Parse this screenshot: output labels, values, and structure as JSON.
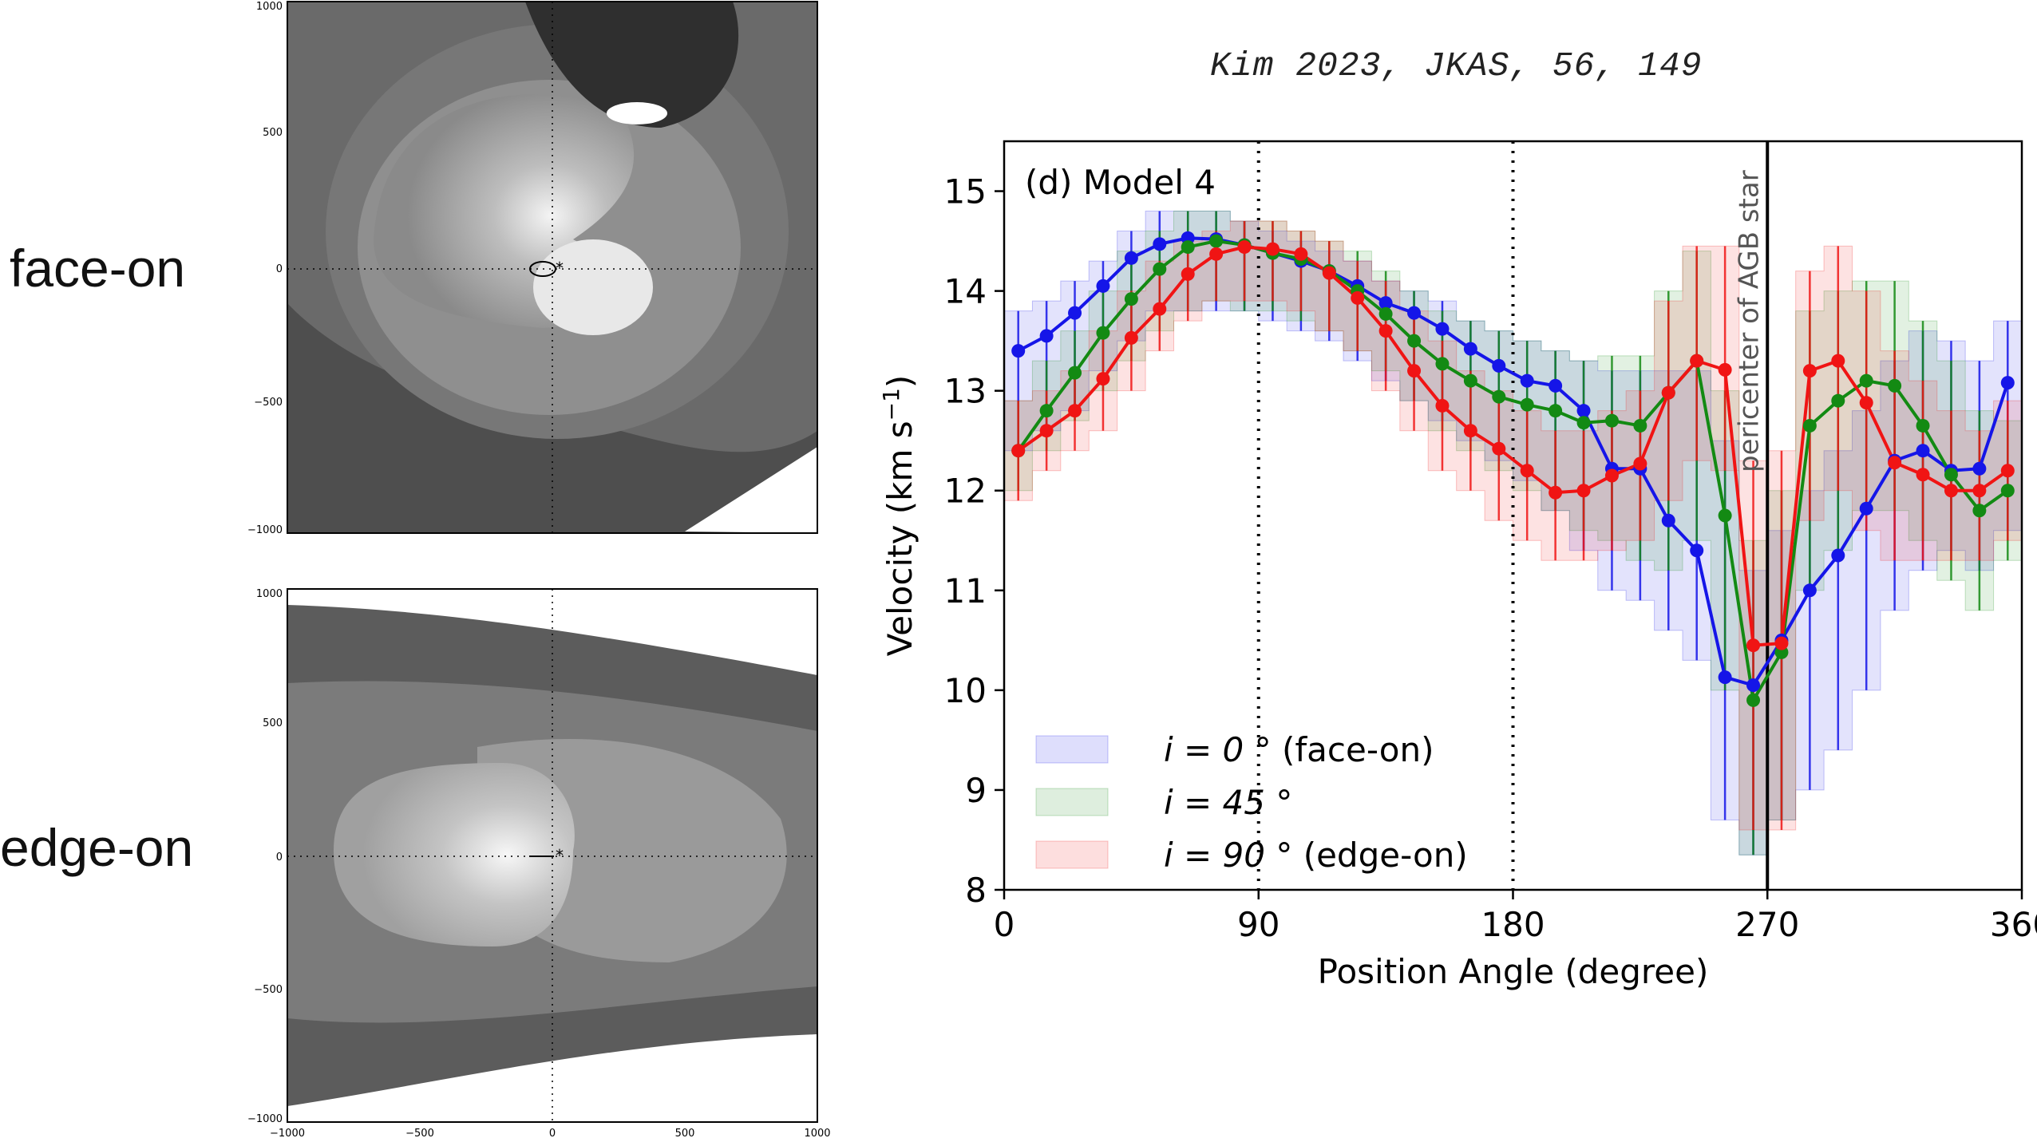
{
  "labels": {
    "face": "face-on",
    "edge": "edge-on"
  },
  "citation": "Kim 2023, JKAS, 56, 149",
  "face_panel": {
    "y_ticks": [
      "1000",
      "500",
      "0",
      "−500",
      "−1000"
    ]
  },
  "edge_panel": {
    "y_ticks": [
      "1000",
      "500",
      "0",
      "−500",
      "−1000"
    ],
    "x_ticks": [
      "−1000",
      "−500",
      "0",
      "500",
      "1000"
    ]
  },
  "colors": {
    "blue": "#1515e8",
    "green": "#138a13",
    "red": "#f01414"
  },
  "chart_data": {
    "type": "line",
    "panel_label": "(d) Model 4",
    "xlabel": "Position Angle (degree)",
    "ylabel_main": "Velocity (km s",
    "ylabel_sup": "−1",
    "ylabel_end": ")",
    "xlim": [
      0,
      360
    ],
    "ylim": [
      8,
      15.5
    ],
    "x_ticks": [
      0,
      90,
      180,
      270,
      360
    ],
    "y_ticks": [
      8,
      9,
      10,
      11,
      12,
      13,
      14,
      15
    ],
    "vlines_dotted": [
      90,
      180
    ],
    "vline_solid": 270,
    "vline_label": "pericenter of AGB star",
    "x": [
      5,
      15,
      25,
      35,
      45,
      55,
      65,
      75,
      85,
      95,
      105,
      115,
      125,
      135,
      145,
      155,
      165,
      175,
      185,
      195,
      205,
      215,
      225,
      235,
      245,
      255,
      265,
      275,
      285,
      295,
      305,
      315,
      325,
      335,
      345,
      355
    ],
    "series": [
      {
        "name": "face-on",
        "legend_i": "i = 0",
        "legend_desc": "(face-on)",
        "color": "#1515e8",
        "values": [
          13.4,
          13.55,
          13.78,
          14.05,
          14.33,
          14.47,
          14.53,
          14.52,
          14.46,
          14.38,
          14.3,
          14.2,
          14.05,
          13.88,
          13.78,
          13.62,
          13.42,
          13.25,
          13.1,
          13.05,
          12.8,
          12.22,
          12.22,
          11.7,
          11.4,
          10.13,
          10.05,
          10.5,
          11.0,
          11.35,
          11.82,
          12.3,
          12.4,
          12.2,
          12.22,
          13.08
        ],
        "lower": [
          12.4,
          12.6,
          12.8,
          13.2,
          13.5,
          13.8,
          13.8,
          13.8,
          13.8,
          13.7,
          13.6,
          13.5,
          13.3,
          13.1,
          12.9,
          12.7,
          12.5,
          12.3,
          12.1,
          11.8,
          11.4,
          11.0,
          10.9,
          10.6,
          10.3,
          8.7,
          8.35,
          8.7,
          9.0,
          9.4,
          10.0,
          10.8,
          11.2,
          11.4,
          11.2,
          11.6
        ],
        "upper": [
          13.8,
          13.9,
          14.1,
          14.3,
          14.6,
          14.8,
          14.8,
          14.8,
          14.7,
          14.6,
          14.5,
          14.4,
          14.3,
          14.1,
          14.0,
          13.9,
          13.7,
          13.6,
          13.5,
          13.4,
          13.3,
          13.2,
          13.2,
          13.2,
          13.2,
          12.5,
          11.2,
          11.6,
          12.0,
          12.4,
          12.8,
          13.3,
          13.6,
          13.5,
          13.3,
          13.7
        ]
      },
      {
        "name": "i45",
        "legend_i": "i = 45",
        "legend_desc": "",
        "color": "#138a13",
        "values": [
          12.4,
          12.8,
          13.18,
          13.58,
          13.92,
          14.22,
          14.44,
          14.5,
          14.46,
          14.38,
          14.32,
          14.2,
          14.0,
          13.77,
          13.5,
          13.27,
          13.1,
          12.94,
          12.86,
          12.8,
          12.68,
          12.7,
          12.65,
          12.98,
          13.3,
          11.75,
          9.9,
          10.38,
          12.65,
          12.9,
          13.1,
          13.05,
          12.65,
          12.16,
          11.8,
          12.0
        ],
        "lower": [
          12.0,
          12.4,
          12.7,
          13.0,
          13.3,
          13.6,
          13.8,
          13.9,
          13.8,
          13.8,
          13.7,
          13.6,
          13.4,
          13.2,
          12.9,
          12.6,
          12.4,
          12.2,
          12.0,
          11.8,
          11.6,
          11.5,
          11.3,
          11.2,
          11.5,
          10.0,
          8.35,
          8.7,
          11.0,
          11.4,
          11.8,
          11.8,
          11.5,
          11.1,
          10.8,
          11.3
        ],
        "upper": [
          12.9,
          13.3,
          13.6,
          14.0,
          14.4,
          14.6,
          14.8,
          14.8,
          14.7,
          14.7,
          14.6,
          14.5,
          14.4,
          14.2,
          14.0,
          13.8,
          13.7,
          13.6,
          13.5,
          13.4,
          13.3,
          13.35,
          13.35,
          14.0,
          14.4,
          13.0,
          11.5,
          12.0,
          13.8,
          14.0,
          14.1,
          14.1,
          13.7,
          13.3,
          12.8,
          12.7
        ]
      },
      {
        "name": "edge-on",
        "legend_i": "i = 90",
        "legend_desc": "(edge-on)",
        "color": "#f01414",
        "values": [
          12.4,
          12.6,
          12.8,
          13.12,
          13.53,
          13.82,
          14.17,
          14.37,
          14.44,
          14.42,
          14.37,
          14.18,
          13.93,
          13.6,
          13.2,
          12.85,
          12.6,
          12.42,
          12.2,
          11.98,
          12.0,
          12.15,
          12.27,
          12.98,
          13.3,
          13.21,
          10.45,
          10.47,
          13.2,
          13.3,
          12.88,
          12.28,
          12.16,
          12.0,
          12.0,
          12.2
        ],
        "lower": [
          11.9,
          12.2,
          12.4,
          12.6,
          13.0,
          13.4,
          13.7,
          13.9,
          13.9,
          13.9,
          13.8,
          13.6,
          13.4,
          13.0,
          12.6,
          12.2,
          12.0,
          11.7,
          11.5,
          11.3,
          11.3,
          11.4,
          11.5,
          11.9,
          12.3,
          12.2,
          8.6,
          8.6,
          11.7,
          12.0,
          11.6,
          11.3,
          11.3,
          11.3,
          11.3,
          11.5
        ],
        "upper": [
          12.9,
          13.0,
          13.2,
          13.6,
          14.0,
          14.3,
          14.5,
          14.6,
          14.7,
          14.7,
          14.6,
          14.5,
          14.3,
          14.1,
          13.8,
          13.5,
          13.2,
          13.0,
          12.8,
          12.6,
          12.6,
          12.8,
          13.0,
          13.9,
          14.45,
          14.45,
          12.3,
          12.4,
          14.2,
          14.45,
          14.0,
          13.4,
          13.1,
          12.8,
          12.6,
          12.9
        ]
      }
    ]
  }
}
